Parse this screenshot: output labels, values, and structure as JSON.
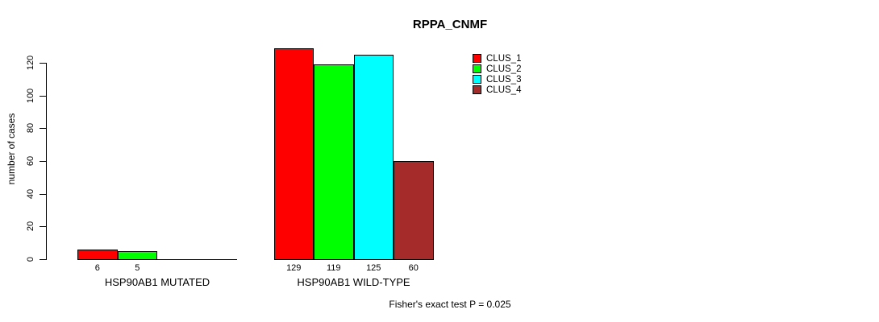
{
  "title": "RPPA_CNMF",
  "ylabel": "number of cases",
  "annotation": "Fisher's exact test P = 0.025",
  "chart_data": {
    "type": "bar",
    "title": "RPPA_CNMF",
    "xlabel": "",
    "ylabel": "number of cases",
    "ylim": [
      0,
      130
    ],
    "y_ticks": [
      0,
      20,
      40,
      60,
      80,
      100,
      120
    ],
    "grid": false,
    "legend_position": "right-of-plot",
    "bar_border_color": "#000000",
    "background_color": "#ffffff",
    "categories": [
      "HSP90AB1 MUTATED",
      "HSP90AB1 WILD-TYPE"
    ],
    "series": [
      {
        "name": "CLUS_1",
        "color": "#ff0000",
        "values": [
          6,
          129
        ]
      },
      {
        "name": "CLUS_2",
        "color": "#00ff00",
        "values": [
          5,
          119
        ]
      },
      {
        "name": "CLUS_3",
        "color": "#00ffff",
        "values": [
          0,
          125
        ]
      },
      {
        "name": "CLUS_4",
        "color": "#a52a2a",
        "values": [
          0,
          60
        ]
      }
    ],
    "bar_value_labels": {
      "HSP90AB1 MUTATED": [
        "6",
        "5",
        "",
        ""
      ],
      "HSP90AB1 WILD-TYPE": [
        "129",
        "119",
        "125",
        "60"
      ]
    },
    "annotation": "Fisher's exact test P = 0.025"
  }
}
